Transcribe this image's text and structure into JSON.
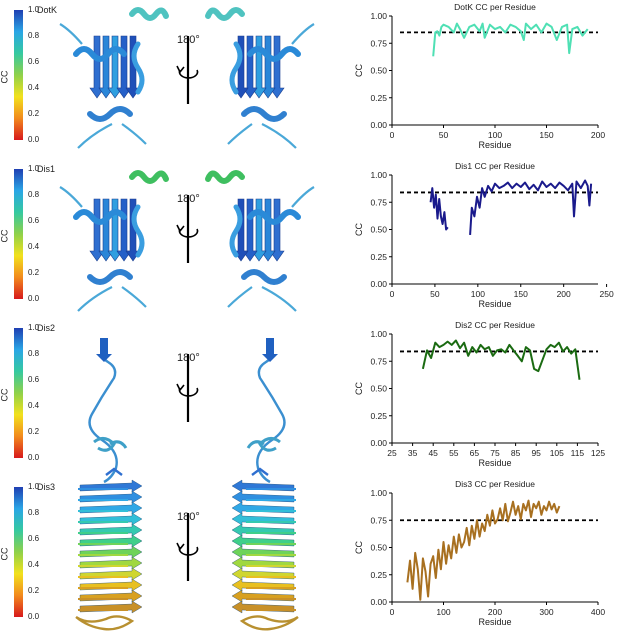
{
  "colorbar": {
    "label": "CC",
    "ticks": [
      "1.0",
      "0.8",
      "0.6",
      "0.4",
      "0.2",
      "0.0"
    ]
  },
  "rotation_label": "180°",
  "panels": [
    {
      "name": "DotK",
      "chart_data": {
        "type": "line",
        "title": "DotK CC per Residue",
        "xlabel": "Residue",
        "ylabel": "CC",
        "xlim": [
          0,
          200
        ],
        "ylim": [
          0,
          1.0
        ],
        "xticks": [
          "0",
          "50",
          "100",
          "150",
          "200"
        ],
        "yticks": [
          "0.00",
          "0.25",
          "0.50",
          "0.75",
          "1.00"
        ],
        "threshold": 0.85,
        "color": "#4fe0b4",
        "x": [
          40,
          42,
          44,
          46,
          48,
          50,
          55,
          60,
          63,
          66,
          70,
          75,
          80,
          85,
          88,
          90,
          95,
          100,
          105,
          110,
          115,
          120,
          125,
          128,
          130,
          135,
          140,
          145,
          150,
          155,
          160,
          165,
          170,
          172,
          175,
          180,
          185,
          190
        ],
        "y": [
          0.63,
          0.85,
          0.86,
          0.82,
          0.9,
          0.92,
          0.9,
          0.85,
          0.93,
          0.88,
          0.8,
          0.9,
          0.92,
          0.86,
          0.93,
          0.8,
          0.92,
          0.88,
          0.9,
          0.85,
          0.92,
          0.9,
          0.86,
          0.78,
          0.93,
          0.88,
          0.92,
          0.85,
          0.93,
          0.9,
          0.78,
          0.9,
          0.92,
          0.66,
          0.88,
          0.9,
          0.82,
          0.88
        ]
      }
    },
    {
      "name": "Dis1",
      "chart_data": {
        "type": "line",
        "title": "Dis1 CC per Residue",
        "xlabel": "Residue",
        "ylabel": "CC",
        "xlim": [
          0,
          240
        ],
        "ylim": [
          0,
          1.0
        ],
        "xticks": [
          "0",
          "50",
          "100",
          "150",
          "200",
          "250"
        ],
        "yticks": [
          "0.00",
          "0.25",
          "0.50",
          "0.75",
          "1.00"
        ],
        "threshold": 0.84,
        "color": "#1a1a8c",
        "segments": [
          {
            "x": [
              45,
              47,
              49,
              51,
              53,
              55,
              57,
              59,
              61,
              63,
              65
            ],
            "y": [
              0.75,
              0.88,
              0.7,
              0.82,
              0.6,
              0.78,
              0.62,
              0.55,
              0.66,
              0.5,
              0.52
            ]
          },
          {
            "x": [
              91,
              93,
              96,
              99,
              102,
              105,
              108,
              112,
              116,
              120,
              125,
              130,
              135,
              140,
              145,
              150,
              155,
              160,
              165,
              170,
              175,
              180,
              185,
              190,
              195,
              200,
              205,
              210,
              212,
              215,
              220,
              225,
              228,
              230,
              232
            ],
            "y": [
              0.45,
              0.7,
              0.62,
              0.8,
              0.7,
              0.88,
              0.8,
              0.9,
              0.85,
              0.92,
              0.88,
              0.9,
              0.93,
              0.88,
              0.92,
              0.89,
              0.93,
              0.87,
              0.91,
              0.86,
              0.94,
              0.89,
              0.92,
              0.88,
              0.93,
              0.9,
              0.86,
              0.92,
              0.62,
              0.94,
              0.88,
              0.95,
              0.9,
              0.72,
              0.92
            ]
          }
        ]
      }
    },
    {
      "name": "Dis2",
      "chart_data": {
        "type": "line",
        "title": "Dis2 CC per Residue",
        "xlabel": "Residue",
        "ylabel": "CC",
        "xlim": [
          25,
          125
        ],
        "ylim": [
          0,
          1.0
        ],
        "xticks": [
          "25",
          "35",
          "45",
          "55",
          "65",
          "75",
          "85",
          "95",
          "105",
          "115",
          "125"
        ],
        "yticks": [
          "0.00",
          "0.25",
          "0.50",
          "0.75",
          "1.00"
        ],
        "threshold": 0.84,
        "color": "#1b6b12",
        "x": [
          40,
          42,
          44,
          46,
          48,
          50,
          52,
          54,
          56,
          58,
          60,
          62,
          64,
          66,
          68,
          70,
          72,
          74,
          76,
          78,
          80,
          82,
          84,
          86,
          88,
          90,
          92,
          94,
          96,
          98,
          100,
          102,
          104,
          106,
          108,
          110,
          112,
          114,
          116
        ],
        "y": [
          0.68,
          0.85,
          0.78,
          0.92,
          0.88,
          0.9,
          0.93,
          0.9,
          0.94,
          0.87,
          0.92,
          0.8,
          0.88,
          0.83,
          0.9,
          0.86,
          0.88,
          0.8,
          0.85,
          0.86,
          0.83,
          0.9,
          0.85,
          0.8,
          0.75,
          0.88,
          0.85,
          0.68,
          0.66,
          0.76,
          0.86,
          0.9,
          0.88,
          0.92,
          0.84,
          0.88,
          0.82,
          0.86,
          0.58
        ]
      }
    },
    {
      "name": "Dis3",
      "chart_data": {
        "type": "line",
        "title": "Dis3 CC per Residue",
        "xlabel": "Residue",
        "ylabel": "CC",
        "xlim": [
          0,
          400
        ],
        "ylim": [
          0,
          1.0
        ],
        "xticks": [
          "0",
          "100",
          "200",
          "300",
          "400"
        ],
        "yticks": [
          "0.00",
          "0.25",
          "0.50",
          "0.75",
          "1.00"
        ],
        "threshold": 0.75,
        "color": "#a87020",
        "x": [
          30,
          35,
          40,
          45,
          50,
          55,
          60,
          65,
          70,
          75,
          80,
          85,
          90,
          95,
          100,
          105,
          110,
          115,
          120,
          125,
          130,
          135,
          140,
          145,
          150,
          155,
          160,
          165,
          170,
          175,
          180,
          185,
          190,
          195,
          200,
          205,
          210,
          215,
          220,
          225,
          230,
          235,
          240,
          245,
          250,
          255,
          260,
          265,
          270,
          275,
          280,
          285,
          290,
          295,
          300,
          305,
          310,
          315,
          320,
          325
        ],
        "y": [
          0.18,
          0.38,
          0.12,
          0.45,
          0.3,
          0.02,
          0.4,
          0.28,
          0.05,
          0.35,
          0.42,
          0.22,
          0.48,
          0.3,
          0.55,
          0.35,
          0.52,
          0.4,
          0.6,
          0.45,
          0.62,
          0.5,
          0.55,
          0.68,
          0.52,
          0.7,
          0.58,
          0.75,
          0.6,
          0.72,
          0.65,
          0.8,
          0.7,
          0.84,
          0.72,
          0.76,
          0.86,
          0.75,
          0.9,
          0.74,
          0.82,
          0.92,
          0.8,
          0.88,
          0.76,
          0.9,
          0.84,
          0.93,
          0.78,
          0.9,
          0.86,
          0.92,
          0.8,
          0.88,
          0.84,
          0.92,
          0.85,
          0.9,
          0.82,
          0.88
        ]
      }
    }
  ]
}
